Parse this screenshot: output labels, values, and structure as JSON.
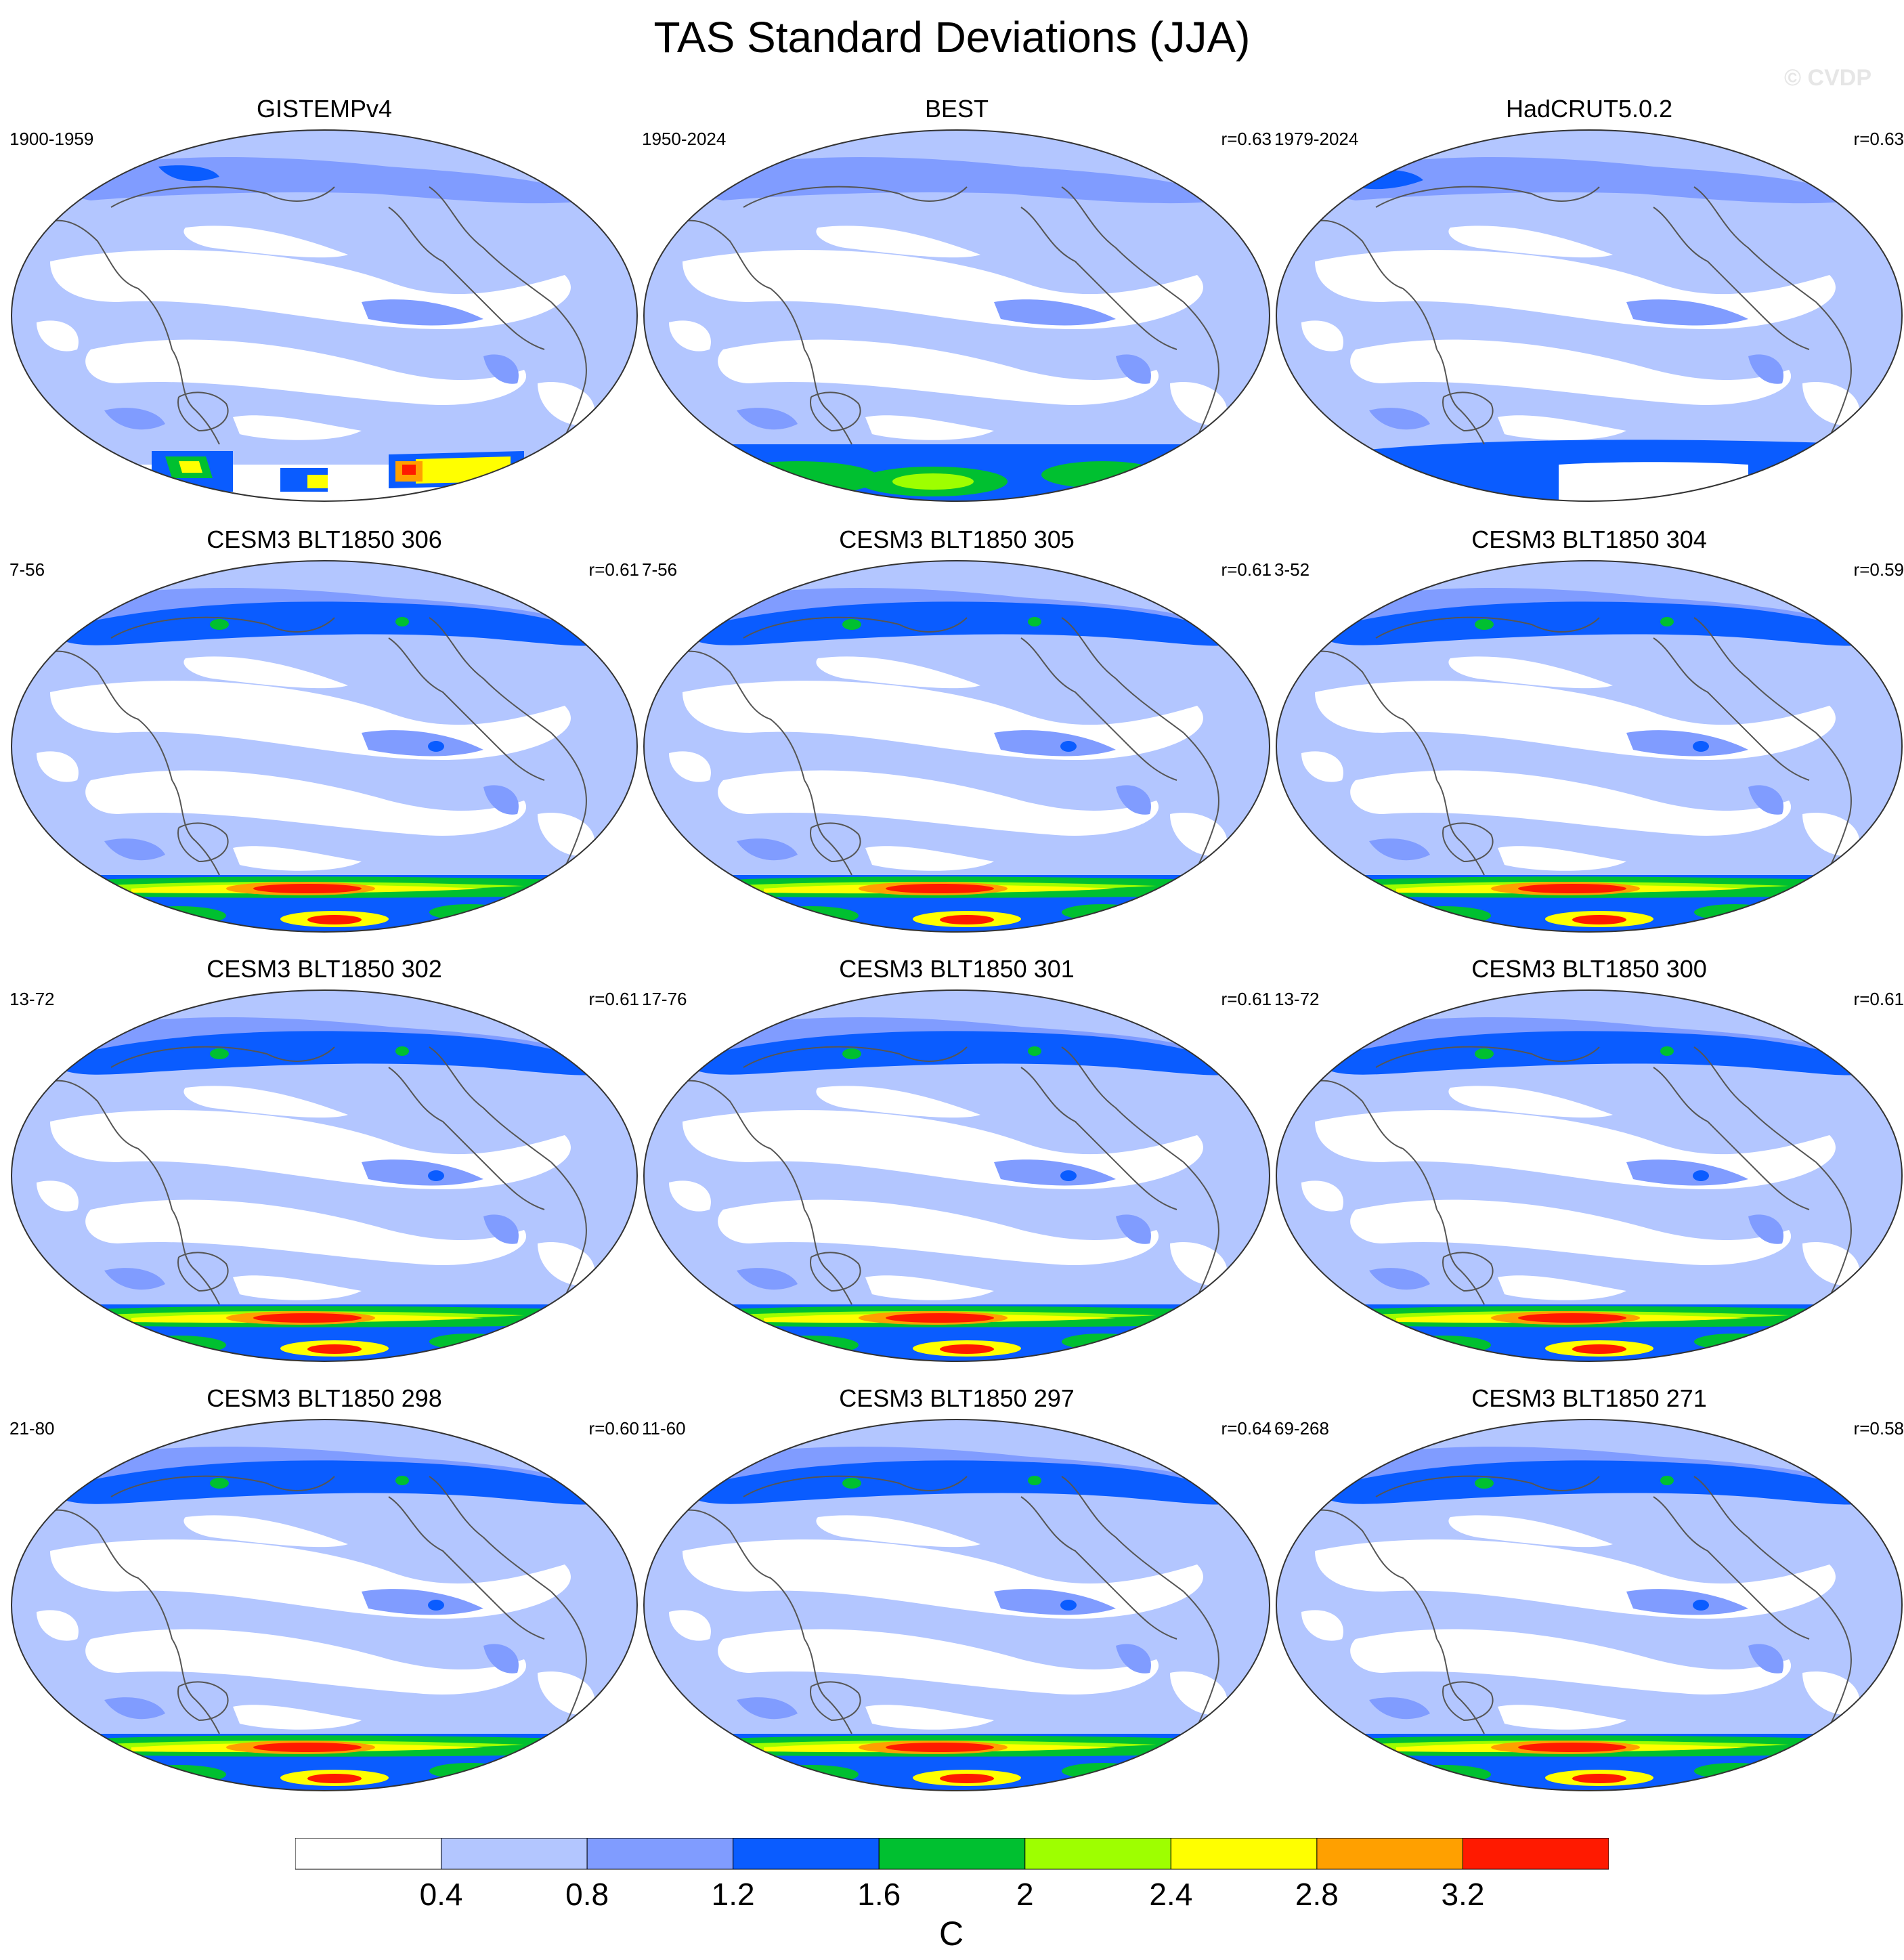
{
  "title": "TAS Standard Deviations (JJA)",
  "watermark": "© CVDP",
  "colorbar": {
    "colors": [
      "#ffffff",
      "#b3c6ff",
      "#809cff",
      "#0a5cff",
      "#00c030",
      "#9eff00",
      "#ffff00",
      "#ffa000",
      "#ff1a00"
    ],
    "labels": [
      "0.4",
      "0.8",
      "1.2",
      "1.6",
      "2",
      "2.4",
      "2.8",
      "3.2"
    ],
    "unit": "C"
  },
  "panels": [
    {
      "title": "GISTEMPv4",
      "left": "1900-1959",
      "right": "",
      "kind": "gistemp"
    },
    {
      "title": "BEST",
      "left": "1950-2024",
      "right": "r=0.63",
      "kind": "best"
    },
    {
      "title": "HadCRUT5.0.2",
      "left": "1979-2024",
      "right": "r=0.63",
      "kind": "hadcrut"
    },
    {
      "title": "CESM3 BLT1850 306",
      "left": "7-56",
      "right": "r=0.61",
      "kind": "model"
    },
    {
      "title": "CESM3 BLT1850 305",
      "left": "7-56",
      "right": "r=0.61",
      "kind": "model"
    },
    {
      "title": "CESM3 BLT1850 304",
      "left": "3-52",
      "right": "r=0.59",
      "kind": "model"
    },
    {
      "title": "CESM3 BLT1850 302",
      "left": "13-72",
      "right": "r=0.61",
      "kind": "model"
    },
    {
      "title": "CESM3 BLT1850 301",
      "left": "17-76",
      "right": "r=0.61",
      "kind": "model"
    },
    {
      "title": "CESM3 BLT1850 300",
      "left": "13-72",
      "right": "r=0.61",
      "kind": "model"
    },
    {
      "title": "CESM3 BLT1850 298",
      "left": "21-80",
      "right": "r=0.60",
      "kind": "model"
    },
    {
      "title": "CESM3 BLT1850 297",
      "left": "11-60",
      "right": "r=0.64",
      "kind": "model"
    },
    {
      "title": "CESM3 BLT1850 271",
      "left": "69-268",
      "right": "r=0.58",
      "kind": "model"
    }
  ]
}
